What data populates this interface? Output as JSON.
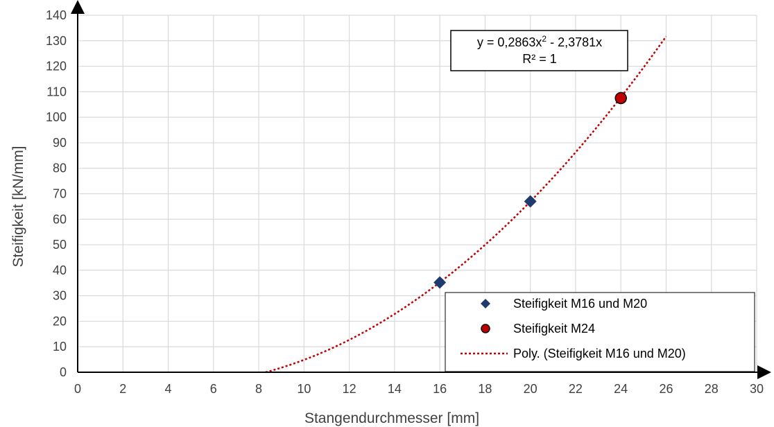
{
  "chart_data": {
    "type": "scatter",
    "xlabel": "Stangendurchmesser [mm]",
    "ylabel": "Steifigkeit [kN/mm]",
    "xlim": [
      0,
      30
    ],
    "ylim": [
      0,
      140
    ],
    "x_ticks": [
      "0",
      "2",
      "4",
      "6",
      "8",
      "10",
      "12",
      "14",
      "16",
      "18",
      "20",
      "22",
      "24",
      "26",
      "28",
      "30"
    ],
    "y_ticks": [
      "0",
      "10",
      "20",
      "30",
      "40",
      "50",
      "60",
      "70",
      "80",
      "90",
      "100",
      "110",
      "120",
      "130",
      "140"
    ],
    "grid": true,
    "series": [
      {
        "name": "Steifigkeit M16 und M20",
        "marker": "diamond",
        "color": "#1f3a6e",
        "points": [
          [
            16,
            35.2
          ],
          [
            20,
            67
          ]
        ]
      },
      {
        "name": "Steifigkeit M24",
        "marker": "circle",
        "color": "#c00000",
        "points": [
          [
            24,
            107.5
          ]
        ]
      }
    ],
    "trendline": {
      "name": "Poly. (Steifigkeit M16 und M20)",
      "color": "#c00000",
      "a": 0.2863,
      "b": -2.3781,
      "x_range": [
        8.3,
        26
      ]
    },
    "equation": {
      "pre": "y = 0,2863x",
      "sup": "2",
      "post": " - 2,3781x",
      "r2": "R² = 1"
    },
    "legend_placement": "bottom-right"
  }
}
